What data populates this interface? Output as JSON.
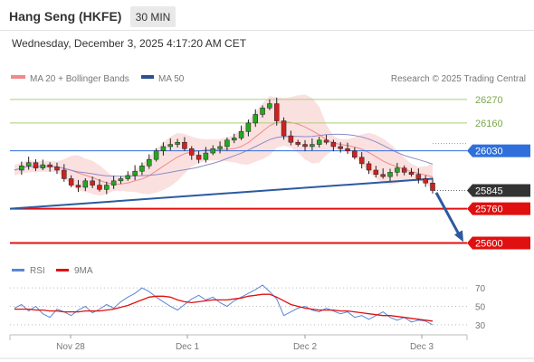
{
  "header": {
    "instrument": "Hang Seng (HKFE)",
    "timeframe": "30 MIN",
    "datetime": "Wednesday, December 3, 2025 4:17:20 AM CET"
  },
  "legend": {
    "bollinger_label": "MA 20 + Bollinger Bands",
    "ma50_label": "MA 50",
    "credit": "Research © 2025 Trading Central",
    "rsi_label": "RSI",
    "ma9_label": "9MA"
  },
  "colors": {
    "bollinger": "#f08a8a",
    "band_fill": "#fbe0e0",
    "ma50": "#2c4f8f",
    "resistance": "#a9cf7b",
    "pivot_tag": "#2f6fdb",
    "support": "#e01010",
    "last_tag": "#333333",
    "trendline": "#2c5aa0",
    "rsi": "#5a86d6",
    "rsi_ma": "#e01010"
  },
  "chart_data": [
    {
      "type": "candlestick",
      "title": "Hang Seng (HKFE)",
      "x_ticks": [
        "Nov 28",
        "Dec 1",
        "Dec 2",
        "Dec 3"
      ],
      "ylim": [
        25560,
        26320
      ],
      "levels": {
        "resistance": [
          26270,
          26160
        ],
        "pivot": 26030,
        "last": 25845,
        "support": [
          25760,
          25600
        ]
      },
      "close_path": [
        25940,
        25960,
        25975,
        25950,
        25965,
        25955,
        25940,
        25900,
        25870,
        25860,
        25890,
        25870,
        25850,
        25870,
        25890,
        25900,
        25915,
        25935,
        25960,
        25990,
        26030,
        26050,
        26060,
        26070,
        26040,
        26010,
        25990,
        26020,
        26040,
        26050,
        26080,
        26090,
        26120,
        26160,
        26200,
        26230,
        26250,
        26170,
        26100,
        26070,
        26060,
        26050,
        26060,
        26080,
        26070,
        26050,
        26040,
        26030,
        26000,
        25970,
        25940,
        25920,
        25910,
        25930,
        25950,
        25930,
        25920,
        25900,
        25880,
        25845
      ],
      "series": [
        {
          "name": "MA 20 + Bollinger Bands"
        },
        {
          "name": "MA 50"
        }
      ]
    },
    {
      "type": "line",
      "ylim": [
        25,
        75
      ],
      "y_ticks": [
        70,
        50,
        30
      ],
      "series": [
        {
          "name": "RSI",
          "values": [
            48,
            52,
            45,
            50,
            42,
            38,
            47,
            44,
            40,
            46,
            50,
            43,
            47,
            52,
            48,
            55,
            60,
            64,
            70,
            66,
            60,
            55,
            50,
            46,
            52,
            58,
            62,
            57,
            60,
            54,
            50,
            56,
            60,
            64,
            68,
            73,
            66,
            58,
            40,
            44,
            48,
            50,
            46,
            44,
            48,
            45,
            42,
            44,
            38,
            40,
            36,
            40,
            44,
            38,
            35,
            38,
            33,
            35,
            34,
            30
          ]
        },
        {
          "name": "9MA",
          "values": [
            47,
            47,
            47,
            46,
            46,
            45,
            45,
            44,
            44,
            44,
            45,
            45,
            45,
            46,
            47,
            49,
            51,
            54,
            57,
            60,
            61,
            61,
            60,
            57,
            55,
            54,
            55,
            56,
            57,
            57,
            57,
            58,
            59,
            61,
            62,
            63,
            63,
            60,
            56,
            52,
            50,
            48,
            47,
            46,
            46,
            46,
            45,
            45,
            44,
            43,
            42,
            41,
            40,
            40,
            39,
            38,
            37,
            36,
            35,
            34
          ]
        }
      ]
    }
  ]
}
